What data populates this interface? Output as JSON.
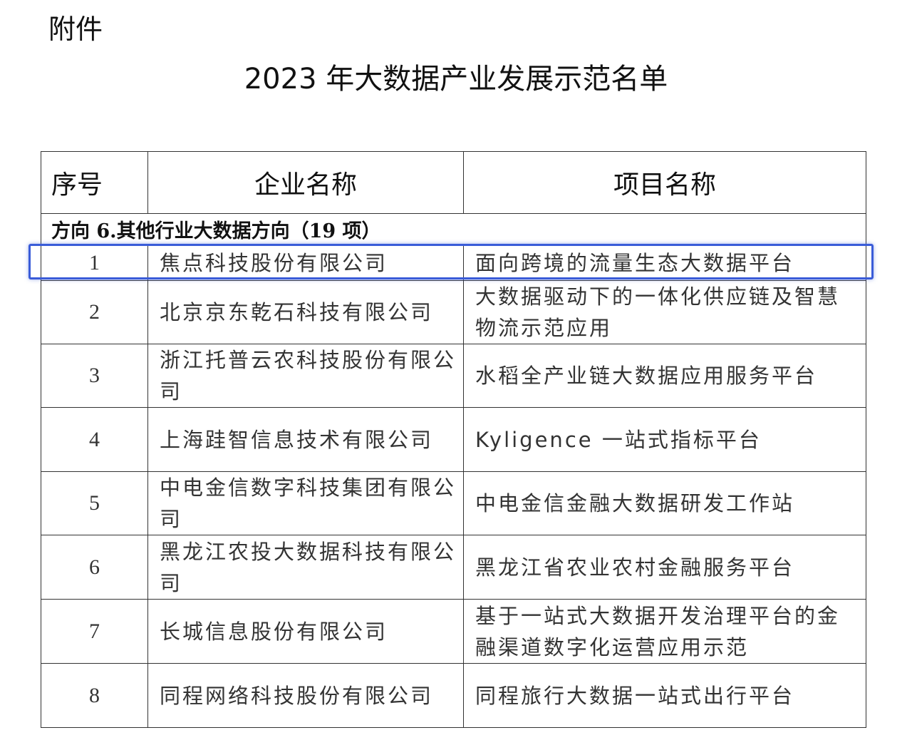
{
  "attachment_label": "附件",
  "title": "2023 年大数据产业发展示范名单",
  "table": {
    "headers": [
      "序号",
      "企业名称",
      "项目名称"
    ],
    "section": "方向 6.其他行业大数据方向（19 项）",
    "rows": [
      {
        "no": "1",
        "company": "焦点科技股份有限公司",
        "project": "面向跨境的流量生态大数据平台"
      },
      {
        "no": "2",
        "company": "北京京东乾石科技有限公司",
        "project": "大数据驱动下的一体化供应链及智慧物流示范应用"
      },
      {
        "no": "3",
        "company": "浙江托普云农科技股份有限公司",
        "project": "水稻全产业链大数据应用服务平台"
      },
      {
        "no": "4",
        "company": "上海跬智信息技术有限公司",
        "project": "Kyligence 一站式指标平台"
      },
      {
        "no": "5",
        "company": "中电金信数字科技集团有限公司",
        "project": "中电金信金融大数据研发工作站"
      },
      {
        "no": "6",
        "company": "黑龙江农投大数据科技有限公司",
        "project": "黑龙江省农业农村金融服务平台"
      },
      {
        "no": "7",
        "company": "长城信息股份有限公司",
        "project": "基于一站式大数据开发治理平台的金融渠道数字化运营应用示范"
      },
      {
        "no": "8",
        "company": "同程网络科技股份有限公司",
        "project": "同程旅行大数据一站式出行平台"
      }
    ],
    "highlighted_row": "1",
    "highlight_color": "#3a5cd8"
  }
}
